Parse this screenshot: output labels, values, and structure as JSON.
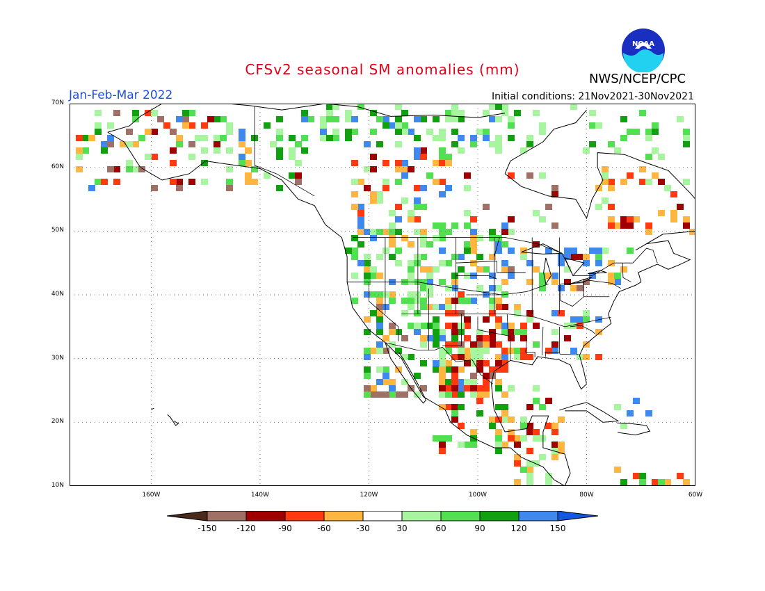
{
  "title": "CFSv2 seasonal SM anomalies (mm)",
  "period": "Jan-Feb-Mar 2022",
  "initial_conditions": "Initial conditions: 21Nov2021-30Nov2021",
  "agency": "NWS/NCEP/CPC",
  "logo_text": "NOAA",
  "map": {
    "lon_range": [
      -175,
      -60
    ],
    "lat_range": [
      10,
      70
    ],
    "lat_labels": [
      "70N",
      "60N",
      "50N",
      "40N",
      "30N",
      "20N",
      "10N"
    ],
    "lat_values": [
      70,
      60,
      50,
      40,
      30,
      20,
      10
    ],
    "lon_labels": [
      "160W",
      "140W",
      "120W",
      "100W",
      "80W",
      "60W"
    ],
    "lon_values": [
      -160,
      -140,
      -120,
      -100,
      -80,
      -60
    ]
  },
  "legend": {
    "ticks": [
      "-150",
      "-120",
      "-90",
      "-60",
      "-30",
      "30",
      "60",
      "90",
      "120",
      "150"
    ],
    "colors": [
      "#4a2a1a",
      "#a07066",
      "#a00000",
      "#ff3a10",
      "#ffb640",
      "#ffffff",
      "#a8f5a0",
      "#52e052",
      "#10a010",
      "#3f88ee",
      "#1458e0"
    ]
  },
  "anomaly_colors": {
    "dry3": "#a00000",
    "dry2": "#ff3a10",
    "dry1": "#ffb640",
    "dry4": "#a07066",
    "dry5": "#4a2a1a",
    "wet1": "#a8f5a0",
    "wet2": "#52e052",
    "wet3": "#10a010",
    "wet4": "#3f88ee"
  }
}
